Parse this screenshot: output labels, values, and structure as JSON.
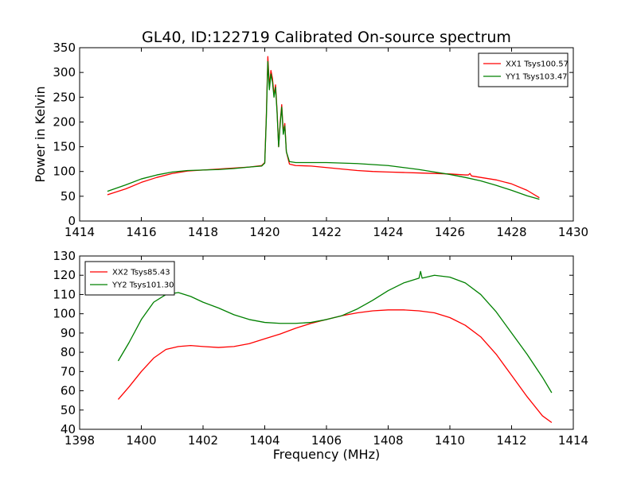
{
  "figure": {
    "title": "GL40, ID:122719 Calibrated On-source spectrum",
    "xlabel": "Frequency (MHz)",
    "ylabel": "Power in Kelvin"
  },
  "chart_data": [
    {
      "type": "line",
      "xlim": [
        1414,
        1430
      ],
      "ylim": [
        0,
        350
      ],
      "xticks": [
        "1414",
        "1416",
        "1418",
        "1420",
        "1422",
        "1424",
        "1426",
        "1428",
        "1430"
      ],
      "yticks": [
        "0",
        "50",
        "100",
        "150",
        "200",
        "250",
        "300",
        "350"
      ],
      "legend_position": "top-right",
      "grid": false,
      "series": [
        {
          "name": "XX1 Tsys100.57",
          "color": "#ff0000",
          "x": [
            1414.9,
            1415.5,
            1416.0,
            1416.5,
            1417.0,
            1417.5,
            1418.0,
            1418.5,
            1419.0,
            1419.5,
            1419.9,
            1420.0,
            1420.05,
            1420.1,
            1420.15,
            1420.2,
            1420.25,
            1420.3,
            1420.35,
            1420.4,
            1420.45,
            1420.5,
            1420.55,
            1420.6,
            1420.65,
            1420.7,
            1420.8,
            1421.0,
            1421.5,
            1422.0,
            1422.5,
            1423.0,
            1423.5,
            1424.0,
            1424.5,
            1425.0,
            1425.5,
            1426.0,
            1426.5,
            1426.6,
            1426.65,
            1426.7,
            1427.0,
            1427.5,
            1428.0,
            1428.5,
            1428.9
          ],
          "y": [
            53,
            65,
            78,
            88,
            96,
            101,
            103,
            105,
            107,
            109,
            112,
            118,
            210,
            332,
            272,
            304,
            288,
            255,
            275,
            222,
            150,
            200,
            235,
            180,
            197,
            140,
            115,
            112,
            111,
            108,
            105,
            102,
            100,
            99,
            98,
            97,
            96,
            95,
            93,
            93,
            96,
            91,
            88,
            83,
            75,
            62,
            47
          ]
        },
        {
          "name": "YY1 Tsys103.47",
          "color": "#008000",
          "x": [
            1414.9,
            1415.5,
            1416.0,
            1416.5,
            1417.0,
            1417.5,
            1418.0,
            1418.5,
            1419.0,
            1419.5,
            1419.9,
            1420.0,
            1420.05,
            1420.1,
            1420.15,
            1420.2,
            1420.25,
            1420.3,
            1420.35,
            1420.4,
            1420.45,
            1420.5,
            1420.55,
            1420.6,
            1420.65,
            1420.7,
            1420.8,
            1421.0,
            1421.5,
            1422.0,
            1422.5,
            1423.0,
            1423.5,
            1424.0,
            1424.5,
            1425.0,
            1425.5,
            1426.0,
            1426.5,
            1427.0,
            1427.5,
            1428.0,
            1428.5,
            1428.9
          ],
          "y": [
            60,
            73,
            85,
            93,
            99,
            102,
            103,
            104,
            106,
            109,
            111,
            117,
            205,
            322,
            265,
            297,
            280,
            250,
            270,
            218,
            150,
            195,
            230,
            175,
            192,
            140,
            120,
            118,
            118,
            118,
            117,
            116,
            114,
            112,
            108,
            104,
            99,
            94,
            88,
            81,
            72,
            62,
            51,
            44
          ]
        }
      ]
    },
    {
      "type": "line",
      "xlim": [
        1398,
        1414
      ],
      "ylim": [
        40,
        130
      ],
      "xticks": [
        "1398",
        "1400",
        "1402",
        "1404",
        "1406",
        "1408",
        "1410",
        "1412",
        "1414"
      ],
      "yticks": [
        "40",
        "50",
        "60",
        "70",
        "80",
        "90",
        "100",
        "110",
        "120",
        "130"
      ],
      "legend_position": "top-left",
      "grid": false,
      "series": [
        {
          "name": "XX2 Tsys85.43",
          "color": "#ff0000",
          "x": [
            1399.25,
            1399.6,
            1400.0,
            1400.4,
            1400.8,
            1401.2,
            1401.6,
            1402.0,
            1402.5,
            1403.0,
            1403.5,
            1404.0,
            1404.5,
            1405.0,
            1405.5,
            1406.0,
            1406.5,
            1407.0,
            1407.5,
            1408.0,
            1408.5,
            1409.0,
            1409.5,
            1410.0,
            1410.5,
            1411.0,
            1411.5,
            1412.0,
            1412.5,
            1413.0,
            1413.3
          ],
          "y": [
            55.5,
            62,
            70,
            77,
            81.5,
            83,
            83.5,
            83,
            82.5,
            83,
            84.5,
            87,
            89.5,
            92.5,
            95,
            97,
            99,
            100.5,
            101.5,
            102,
            102,
            101.5,
            100.5,
            98,
            94,
            88,
            79,
            68,
            57,
            47,
            43.5
          ]
        },
        {
          "name": "YY2 Tsys101.30",
          "color": "#008000",
          "x": [
            1399.25,
            1399.6,
            1400.0,
            1400.4,
            1400.8,
            1401.2,
            1401.6,
            1402.0,
            1402.5,
            1403.0,
            1403.5,
            1404.0,
            1404.5,
            1405.0,
            1405.5,
            1406.0,
            1406.5,
            1407.0,
            1407.5,
            1408.0,
            1408.5,
            1409.0,
            1409.05,
            1409.1,
            1409.5,
            1410.0,
            1410.5,
            1411.0,
            1411.5,
            1412.0,
            1412.5,
            1413.0,
            1413.3
          ],
          "y": [
            75.5,
            85,
            97,
            106,
            110,
            111,
            109,
            106,
            103,
            99.5,
            97,
            95.5,
            95,
            95,
            95.5,
            97,
            99,
            102.5,
            107,
            112,
            116,
            118.5,
            122,
            118.5,
            120,
            119,
            116,
            110,
            101,
            90,
            79,
            67,
            59
          ]
        }
      ]
    }
  ]
}
